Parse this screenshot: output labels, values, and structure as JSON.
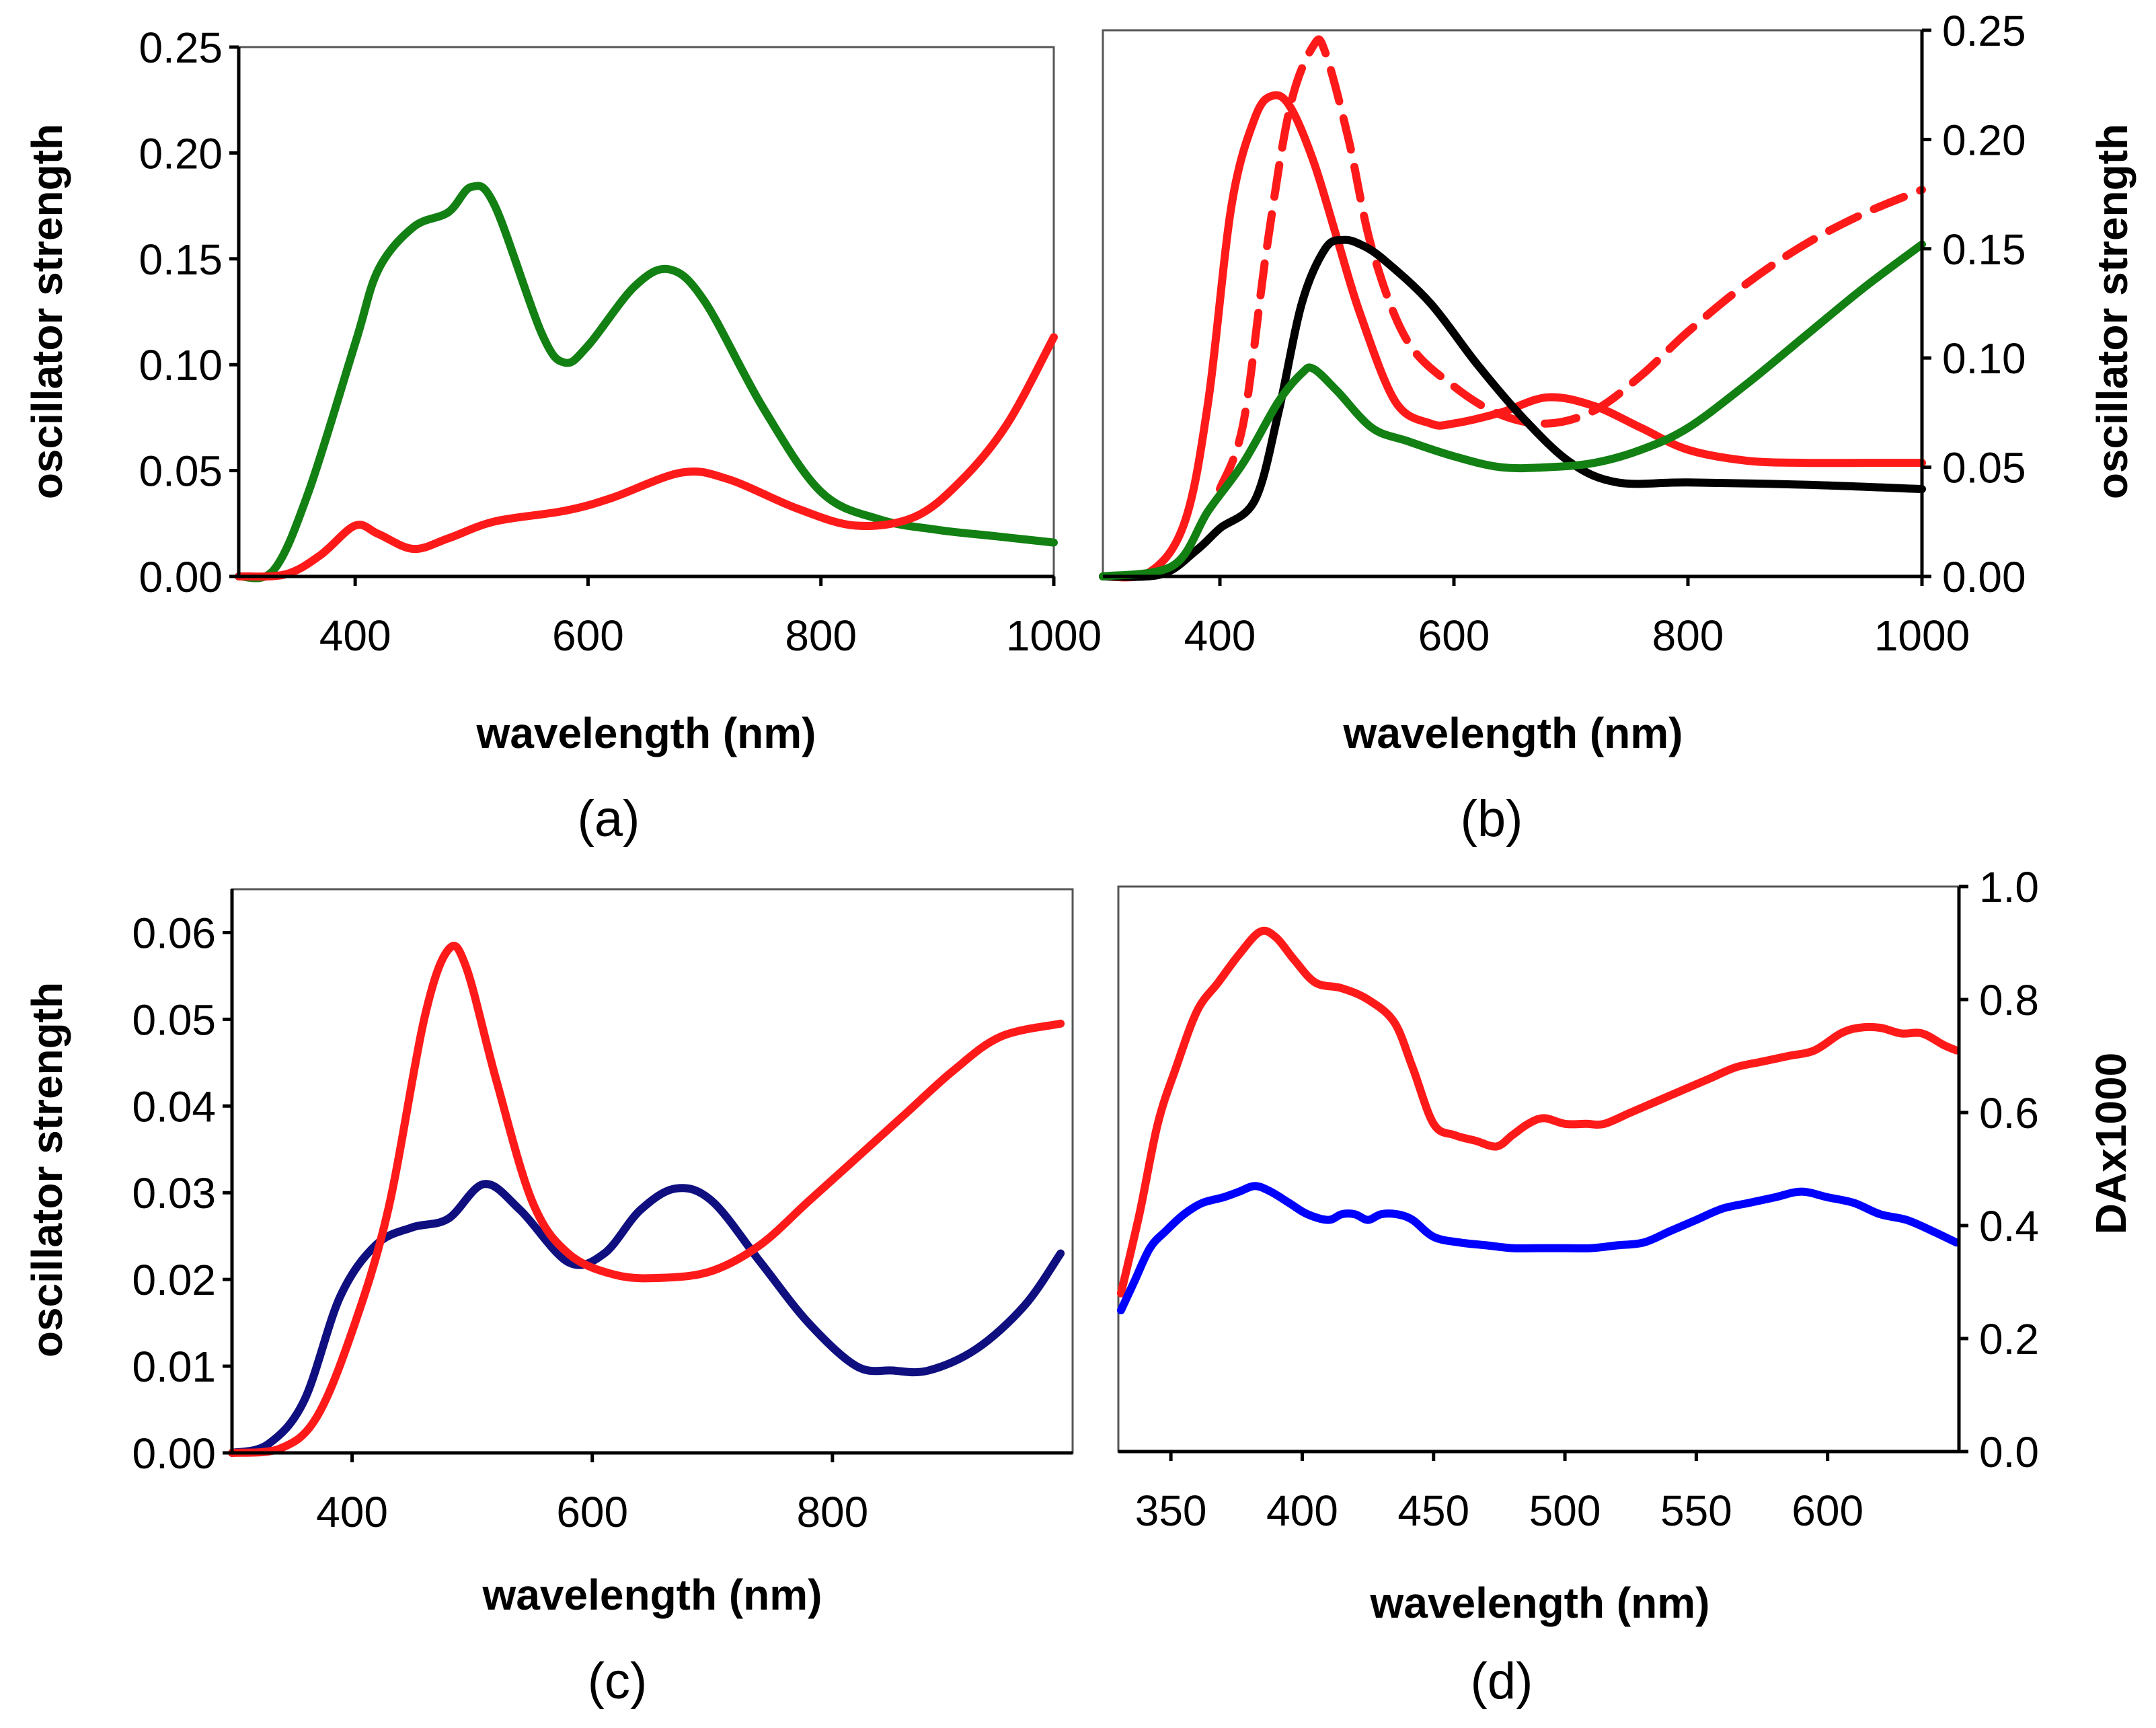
{
  "chart_data": [
    {
      "panel": "a",
      "type": "line",
      "caption": "(a)",
      "xlabel": "wavelength (nm)",
      "ylabel": "oscillator strength",
      "ylabel_side": "left",
      "xlim": [
        300,
        1000
      ],
      "ylim": [
        0,
        0.25
      ],
      "xticks": [
        {
          "v": 400,
          "label": "400"
        },
        {
          "v": 600,
          "label": "600"
        },
        {
          "v": 800,
          "label": "800"
        },
        {
          "v": 1000,
          "label": "1000"
        }
      ],
      "yticks": [
        {
          "v": 0,
          "label": "0.00"
        },
        {
          "v": 0.05,
          "label": "0.05"
        },
        {
          "v": 0.1,
          "label": "0.10"
        },
        {
          "v": 0.15,
          "label": "0.15"
        },
        {
          "v": 0.2,
          "label": "0.20"
        },
        {
          "v": 0.25,
          "label": "0.25"
        }
      ],
      "grid": false,
      "series": [
        {
          "name": "green",
          "color": "#128012",
          "dash": false,
          "x": [
            300,
            330,
            360,
            400,
            420,
            450,
            480,
            500,
            520,
            560,
            580,
            600,
            640,
            670,
            700,
            750,
            800,
            850,
            900,
            950,
            1000
          ],
          "y": [
            0,
            0.003,
            0.04,
            0.11,
            0.145,
            0.165,
            0.172,
            0.184,
            0.175,
            0.115,
            0.101,
            0.109,
            0.137,
            0.145,
            0.13,
            0.08,
            0.04,
            0.027,
            0.022,
            0.019,
            0.016
          ]
        },
        {
          "name": "red",
          "color": "#ff1a1a",
          "dash": false,
          "x": [
            300,
            340,
            370,
            400,
            420,
            450,
            480,
            520,
            580,
            620,
            680,
            720,
            780,
            830,
            880,
            920,
            960,
            1000
          ],
          "y": [
            0,
            0.001,
            0.01,
            0.024,
            0.02,
            0.013,
            0.018,
            0.026,
            0.031,
            0.037,
            0.049,
            0.046,
            0.032,
            0.024,
            0.028,
            0.045,
            0.072,
            0.113
          ]
        }
      ]
    },
    {
      "panel": "b",
      "type": "line",
      "caption": "(b)",
      "xlabel": "wavelength (nm)",
      "ylabel": "oscillator strength",
      "ylabel_side": "right",
      "xlim": [
        300,
        1000
      ],
      "ylim": [
        0,
        0.25
      ],
      "xticks": [
        {
          "v": 400,
          "label": "400"
        },
        {
          "v": 600,
          "label": "600"
        },
        {
          "v": 800,
          "label": "800"
        },
        {
          "v": 1000,
          "label": "1000"
        }
      ],
      "yticks": [
        {
          "v": 0,
          "label": "0.00"
        },
        {
          "v": 0.05,
          "label": "0.05"
        },
        {
          "v": 0.1,
          "label": "0.10"
        },
        {
          "v": 0.15,
          "label": "0.15"
        },
        {
          "v": 0.2,
          "label": "0.20"
        },
        {
          "v": 0.25,
          "label": "0.25"
        }
      ],
      "grid": false,
      "series": [
        {
          "name": "red-solid",
          "color": "#ff1a1a",
          "dash": false,
          "x": [
            300,
            340,
            370,
            390,
            410,
            430,
            445,
            460,
            480,
            500,
            520,
            550,
            580,
            600,
            640,
            680,
            720,
            760,
            800,
            850,
            900,
            950,
            1000
          ],
          "y": [
            0,
            0.002,
            0.025,
            0.08,
            0.17,
            0.21,
            0.22,
            0.215,
            0.19,
            0.155,
            0.12,
            0.08,
            0.07,
            0.07,
            0.075,
            0.082,
            0.078,
            0.068,
            0.058,
            0.053,
            0.052,
            0.052,
            0.052
          ]
        },
        {
          "name": "red-dashed",
          "color": "#ff1a1a",
          "dash": true,
          "x": [
            400,
            420,
            440,
            460,
            480,
            490,
            510,
            530,
            560,
            600,
            640,
            680,
            720,
            760,
            800,
            850,
            900,
            950,
            1000
          ],
          "y": [
            0.04,
            0.07,
            0.15,
            0.215,
            0.243,
            0.24,
            0.2,
            0.15,
            0.108,
            0.087,
            0.074,
            0.07,
            0.076,
            0.092,
            0.112,
            0.134,
            0.152,
            0.166,
            0.177
          ]
        },
        {
          "name": "black",
          "color": "#000000",
          "dash": false,
          "x": [
            300,
            350,
            380,
            400,
            430,
            450,
            470,
            490,
            505,
            520,
            540,
            580,
            620,
            660,
            700,
            740,
            800,
            900,
            1000
          ],
          "y": [
            0,
            0.001,
            0.012,
            0.022,
            0.035,
            0.075,
            0.125,
            0.15,
            0.154,
            0.152,
            0.145,
            0.125,
            0.097,
            0.072,
            0.052,
            0.043,
            0.043,
            0.042,
            0.04
          ]
        },
        {
          "name": "green",
          "color": "#128012",
          "dash": false,
          "x": [
            300,
            360,
            390,
            420,
            450,
            470,
            480,
            500,
            530,
            560,
            600,
            640,
            680,
            720,
            760,
            800,
            850,
            900,
            950,
            1000
          ],
          "y": [
            0,
            0.005,
            0.03,
            0.052,
            0.08,
            0.093,
            0.095,
            0.085,
            0.068,
            0.062,
            0.055,
            0.05,
            0.05,
            0.052,
            0.058,
            0.068,
            0.088,
            0.11,
            0.132,
            0.152
          ]
        }
      ]
    },
    {
      "panel": "c",
      "type": "line",
      "caption": "(c)",
      "xlabel": "wavelength (nm)",
      "ylabel": "oscillator strength",
      "ylabel_side": "left",
      "xlim": [
        300,
        1000
      ],
      "ylim": [
        0,
        0.065
      ],
      "xticks": [
        {
          "v": 400,
          "label": "400"
        },
        {
          "v": 600,
          "label": "600"
        },
        {
          "v": 800,
          "label": "800"
        }
      ],
      "yticks": [
        {
          "v": 0,
          "label": "0.00"
        },
        {
          "v": 0.01,
          "label": "0.01"
        },
        {
          "v": 0.02,
          "label": "0.02"
        },
        {
          "v": 0.03,
          "label": "0.03"
        },
        {
          "v": 0.04,
          "label": "0.04"
        },
        {
          "v": 0.05,
          "label": "0.05"
        },
        {
          "v": 0.06,
          "label": "0.06"
        }
      ],
      "grid": false,
      "series": [
        {
          "name": "navy",
          "color": "#0f0f80",
          "dash": false,
          "x": [
            300,
            330,
            360,
            390,
            420,
            450,
            480,
            510,
            540,
            580,
            610,
            640,
            670,
            700,
            740,
            780,
            820,
            850,
            880,
            920,
            960,
            990
          ],
          "y": [
            0,
            0.001,
            0.006,
            0.018,
            0.024,
            0.026,
            0.027,
            0.031,
            0.028,
            0.022,
            0.023,
            0.028,
            0.0305,
            0.029,
            0.022,
            0.015,
            0.01,
            0.0095,
            0.0095,
            0.012,
            0.017,
            0.023
          ]
        },
        {
          "name": "red",
          "color": "#ff1a1a",
          "dash": false,
          "x": [
            300,
            340,
            370,
            400,
            430,
            460,
            480,
            495,
            520,
            550,
            580,
            620,
            660,
            700,
            740,
            780,
            820,
            860,
            900,
            940,
            990
          ],
          "y": [
            0,
            0.0005,
            0.004,
            0.014,
            0.028,
            0.05,
            0.058,
            0.056,
            0.043,
            0.029,
            0.023,
            0.0205,
            0.0202,
            0.021,
            0.024,
            0.029,
            0.034,
            0.039,
            0.044,
            0.048,
            0.0495
          ]
        }
      ]
    },
    {
      "panel": "d",
      "type": "line",
      "caption": "(d)",
      "xlabel": "wavelength (nm)",
      "ylabel": "DAx1000",
      "ylabel_side": "right",
      "xlim": [
        330,
        650
      ],
      "ylim": [
        0,
        1.0
      ],
      "xticks": [
        {
          "v": 350,
          "label": "350"
        },
        {
          "v": 400,
          "label": "400"
        },
        {
          "v": 450,
          "label": "450"
        },
        {
          "v": 500,
          "label": "500"
        },
        {
          "v": 550,
          "label": "550"
        },
        {
          "v": 600,
          "label": "600"
        }
      ],
      "yticks": [
        {
          "v": 0,
          "label": "0.0"
        },
        {
          "v": 0.2,
          "label": "0.2"
        },
        {
          "v": 0.4,
          "label": "0.4"
        },
        {
          "v": 0.6,
          "label": "0.6"
        },
        {
          "v": 0.8,
          "label": "0.8"
        },
        {
          "v": 1.0,
          "label": "1.0"
        }
      ],
      "grid": false,
      "series": [
        {
          "name": "red",
          "color": "#ff1a1a",
          "dash": false,
          "x": [
            331,
            338,
            345,
            352,
            360,
            368,
            376,
            384,
            390,
            397,
            405,
            415,
            425,
            435,
            442,
            450,
            458,
            466,
            474,
            480,
            486,
            492,
            500,
            508,
            515,
            525,
            535,
            545,
            555,
            565,
            575,
            585,
            595,
            605,
            612,
            620,
            628,
            636,
            644,
            649
          ],
          "y": [
            0.28,
            0.42,
            0.58,
            0.68,
            0.78,
            0.83,
            0.88,
            0.92,
            0.91,
            0.87,
            0.83,
            0.82,
            0.8,
            0.76,
            0.68,
            0.58,
            0.56,
            0.55,
            0.54,
            0.56,
            0.58,
            0.59,
            0.58,
            0.58,
            0.58,
            0.6,
            0.62,
            0.64,
            0.66,
            0.68,
            0.69,
            0.7,
            0.71,
            0.74,
            0.75,
            0.75,
            0.74,
            0.74,
            0.72,
            0.71
          ]
        },
        {
          "name": "blue",
          "color": "#0000ff",
          "dash": false,
          "x": [
            331,
            336,
            342,
            348,
            355,
            362,
            370,
            376,
            382,
            388,
            395,
            402,
            410,
            415,
            420,
            425,
            430,
            436,
            442,
            450,
            460,
            470,
            480,
            490,
            500,
            510,
            520,
            530,
            540,
            550,
            560,
            570,
            580,
            590,
            600,
            610,
            620,
            630,
            640,
            649
          ],
          "y": [
            0.25,
            0.3,
            0.36,
            0.39,
            0.42,
            0.44,
            0.45,
            0.46,
            0.47,
            0.46,
            0.44,
            0.42,
            0.41,
            0.42,
            0.42,
            0.41,
            0.42,
            0.42,
            0.41,
            0.38,
            0.37,
            0.365,
            0.36,
            0.36,
            0.36,
            0.36,
            0.365,
            0.37,
            0.39,
            0.41,
            0.43,
            0.44,
            0.45,
            0.46,
            0.45,
            0.44,
            0.42,
            0.41,
            0.39,
            0.37
          ]
        }
      ]
    }
  ]
}
